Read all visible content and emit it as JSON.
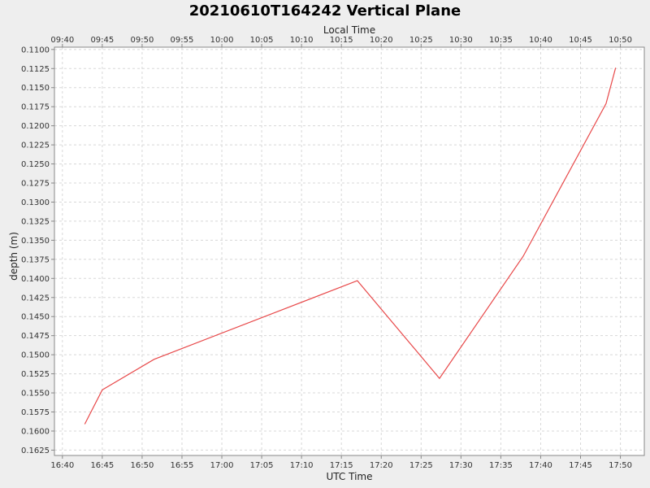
{
  "chart_data": {
    "type": "line",
    "title": "20210610T164242 Vertical Plane",
    "xlabel": "UTC Time",
    "x2label": "Local Time",
    "ylabel": "depth (m)",
    "xlim": [
      "16:39",
      "17:53"
    ],
    "ylim": [
      0.1097,
      0.1632
    ],
    "y_inverted": true,
    "grid": true,
    "x_ticks": [
      "16:40",
      "16:45",
      "16:50",
      "16:55",
      "17:00",
      "17:05",
      "17:10",
      "17:15",
      "17:20",
      "17:25",
      "17:30",
      "17:35",
      "17:40",
      "17:45",
      "17:50"
    ],
    "x2_ticks": [
      "09:40",
      "09:45",
      "09:50",
      "09:55",
      "10:00",
      "10:05",
      "10:10",
      "10:15",
      "10:20",
      "10:25",
      "10:30",
      "10:35",
      "10:40",
      "10:45",
      "10:50"
    ],
    "y_ticks": [
      "0.1100",
      "0.1125",
      "0.1150",
      "0.1175",
      "0.1200",
      "0.1225",
      "0.1250",
      "0.1275",
      "0.1300",
      "0.1325",
      "0.1350",
      "0.1375",
      "0.1400",
      "0.1425",
      "0.1450",
      "0.1475",
      "0.1500",
      "0.1525",
      "0.1550",
      "0.1575",
      "0.1600",
      "0.1625"
    ],
    "series": [
      {
        "color": "#e8494a",
        "x": [
          "16:42:48",
          "16:45:00",
          "16:51:30",
          "17:17:00",
          "17:27:18",
          "17:37:48",
          "17:48:12",
          "17:49:24"
        ],
        "y": [
          0.1591,
          0.1546,
          0.1506,
          0.1403,
          0.1531,
          0.1371,
          0.1171,
          0.1124
        ]
      }
    ],
    "colors": {
      "background": "#eeeeee",
      "plot_background": "#ffffff",
      "grid": "#d8d8d8",
      "axis": "#888888"
    }
  }
}
